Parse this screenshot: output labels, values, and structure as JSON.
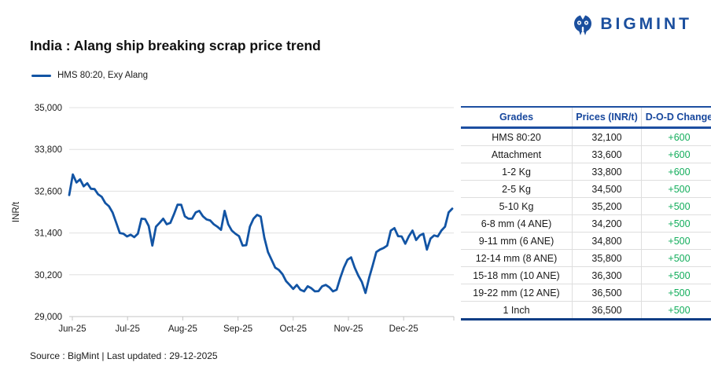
{
  "logo": {
    "text": "BIGMINT",
    "color": "#1b4f9e"
  },
  "title": "India : Alang ship breaking scrap price trend",
  "legend": {
    "label": "HMS 80:20, Exy Alang"
  },
  "footer": "Source : BigMint | Last updated : 29-12-2025",
  "colors": {
    "line_blue": "#1254a4",
    "header_blue": "#17479d",
    "border_blue": "#1d4fa1",
    "bottom_border_blue": "#0e3d85",
    "change_green": "#12ad5b",
    "grid_gray": "#e0e0e0",
    "axis_gray": "#c4c4c4"
  },
  "chart_data": {
    "type": "line",
    "title": "India : Alang ship breaking scrap price trend",
    "ylabel": "INR/t",
    "xlabel": "",
    "ylim": [
      29000,
      35000
    ],
    "grid": "horizontal",
    "legend_position": "top-left",
    "y_ticks": [
      35000,
      33800,
      32600,
      31400,
      30200,
      29000
    ],
    "y_tick_labels": [
      "35,000",
      "33,800",
      "32,600",
      "31,400",
      "30,200",
      "29,000"
    ],
    "x_tick_labels": [
      "Jun-25",
      "Jul-25",
      "Aug-25",
      "Sep-25",
      "Oct-25",
      "Nov-25",
      "Dec-25"
    ],
    "series": [
      {
        "name": "HMS 80:20, Exy Alang",
        "color": "#1254a4",
        "values": [
          32490,
          33080,
          32850,
          32940,
          32740,
          32830,
          32670,
          32660,
          32510,
          32440,
          32260,
          32170,
          31990,
          31700,
          31400,
          31380,
          31300,
          31350,
          31280,
          31380,
          31810,
          31800,
          31600,
          31040,
          31580,
          31690,
          31810,
          31650,
          31690,
          31940,
          32215,
          32210,
          31880,
          31810,
          31810,
          31990,
          32035,
          31880,
          31790,
          31760,
          31650,
          31580,
          31490,
          32035,
          31650,
          31470,
          31380,
          31310,
          31040,
          31050,
          31580,
          31810,
          31920,
          31870,
          31265,
          30855,
          30630,
          30405,
          30340,
          30220,
          30020,
          29910,
          29795,
          29910,
          29770,
          29725,
          29870,
          29815,
          29725,
          29730,
          29870,
          29910,
          29840,
          29725,
          29770,
          30110,
          30405,
          30630,
          30700,
          30405,
          30180,
          29995,
          29680,
          30110,
          30470,
          30855,
          30925,
          30970,
          31040,
          31470,
          31540,
          31310,
          31300,
          31090,
          31310,
          31470,
          31200,
          31330,
          31380,
          30925,
          31240,
          31330,
          31300,
          31470,
          31580,
          31990,
          32100
        ]
      }
    ]
  },
  "table": {
    "columns": [
      "Grades",
      "Prices (INR/t)",
      "D-O-D Change"
    ],
    "rows": [
      {
        "grade": "HMS 80:20",
        "price": "32,100",
        "change": "+600"
      },
      {
        "grade": "Attachment",
        "price": "33,600",
        "change": "+600"
      },
      {
        "grade": "1-2 Kg",
        "price": "33,800",
        "change": "+600"
      },
      {
        "grade": "2-5 Kg",
        "price": "34,500",
        "change": "+500"
      },
      {
        "grade": "5-10 Kg",
        "price": "35,200",
        "change": "+500"
      },
      {
        "grade": "6-8 mm (4 ANE)",
        "price": "34,200",
        "change": "+500"
      },
      {
        "grade": "9-11 mm (6 ANE)",
        "price": "34,800",
        "change": "+500"
      },
      {
        "grade": "12-14 mm (8 ANE)",
        "price": "35,800",
        "change": "+500"
      },
      {
        "grade": "15-18 mm (10 ANE)",
        "price": "36,300",
        "change": "+500"
      },
      {
        "grade": "19-22 mm (12 ANE)",
        "price": "36,500",
        "change": "+500"
      },
      {
        "grade": "1 Inch",
        "price": "36,500",
        "change": "+500"
      }
    ]
  }
}
